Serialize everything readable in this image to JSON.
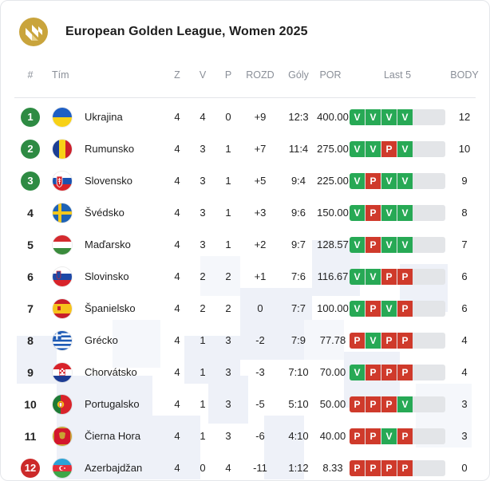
{
  "header": {
    "title": "European Golden League, Women 2025",
    "logo_icon": "league-logo-icon"
  },
  "columns": {
    "rank": "#",
    "team": "Tím",
    "played": "Z",
    "won": "V",
    "lost": "P",
    "diff": "ROZD",
    "score": "Góly",
    "por": "POR",
    "last5": "Last 5",
    "points": "BODY"
  },
  "colors": {
    "win": "#27a955",
    "loss": "#cf3a2b",
    "rank_top": "#2e8b43",
    "rank_bottom": "#cc2a2a",
    "bar_bg": "#e3e5e8"
  },
  "rows": [
    {
      "rank": "1",
      "rank_style": "top",
      "flag": "ukraine",
      "team": "Ukrajina",
      "z": "4",
      "v": "4",
      "p": "0",
      "rozd": "+9",
      "goly": "12:3",
      "por": "400.00",
      "last5": [
        "V",
        "V",
        "V",
        "V"
      ],
      "body": "12"
    },
    {
      "rank": "2",
      "rank_style": "top",
      "flag": "romania",
      "team": "Rumunsko",
      "z": "4",
      "v": "3",
      "p": "1",
      "rozd": "+7",
      "goly": "11:4",
      "por": "275.00",
      "last5": [
        "V",
        "V",
        "P",
        "V"
      ],
      "body": "10"
    },
    {
      "rank": "3",
      "rank_style": "top",
      "flag": "slovakia",
      "team": "Slovensko",
      "z": "4",
      "v": "3",
      "p": "1",
      "rozd": "+5",
      "goly": "9:4",
      "por": "225.00",
      "last5": [
        "V",
        "P",
        "V",
        "V"
      ],
      "body": "9"
    },
    {
      "rank": "4",
      "rank_style": "plain",
      "flag": "sweden",
      "team": "Švédsko",
      "z": "4",
      "v": "3",
      "p": "1",
      "rozd": "+3",
      "goly": "9:6",
      "por": "150.00",
      "last5": [
        "V",
        "P",
        "V",
        "V"
      ],
      "body": "8"
    },
    {
      "rank": "5",
      "rank_style": "plain",
      "flag": "hungary",
      "team": "Maďarsko",
      "z": "4",
      "v": "3",
      "p": "1",
      "rozd": "+2",
      "goly": "9:7",
      "por": "128.57",
      "last5": [
        "V",
        "P",
        "V",
        "V"
      ],
      "body": "7"
    },
    {
      "rank": "6",
      "rank_style": "plain",
      "flag": "slovenia",
      "team": "Slovinsko",
      "z": "4",
      "v": "2",
      "p": "2",
      "rozd": "+1",
      "goly": "7:6",
      "por": "116.67",
      "last5": [
        "V",
        "V",
        "P",
        "P"
      ],
      "body": "6"
    },
    {
      "rank": "7",
      "rank_style": "plain",
      "flag": "spain",
      "team": "Španielsko",
      "z": "4",
      "v": "2",
      "p": "2",
      "rozd": "0",
      "goly": "7:7",
      "por": "100.00",
      "last5": [
        "V",
        "P",
        "V",
        "P"
      ],
      "body": "6"
    },
    {
      "rank": "8",
      "rank_style": "plain",
      "flag": "greece",
      "team": "Grécko",
      "z": "4",
      "v": "1",
      "p": "3",
      "rozd": "-2",
      "goly": "7:9",
      "por": "77.78",
      "last5": [
        "P",
        "V",
        "P",
        "P"
      ],
      "body": "4"
    },
    {
      "rank": "9",
      "rank_style": "plain",
      "flag": "croatia",
      "team": "Chorvátsko",
      "z": "4",
      "v": "1",
      "p": "3",
      "rozd": "-3",
      "goly": "7:10",
      "por": "70.00",
      "last5": [
        "V",
        "P",
        "P",
        "P"
      ],
      "body": "4"
    },
    {
      "rank": "10",
      "rank_style": "plain",
      "flag": "portugal",
      "team": "Portugalsko",
      "z": "4",
      "v": "1",
      "p": "3",
      "rozd": "-5",
      "goly": "5:10",
      "por": "50.00",
      "last5": [
        "P",
        "P",
        "P",
        "V"
      ],
      "body": "3"
    },
    {
      "rank": "11",
      "rank_style": "plain",
      "flag": "montenegro",
      "team": "Čierna Hora",
      "z": "4",
      "v": "1",
      "p": "3",
      "rozd": "-6",
      "goly": "4:10",
      "por": "40.00",
      "last5": [
        "P",
        "P",
        "V",
        "P"
      ],
      "body": "3"
    },
    {
      "rank": "12",
      "rank_style": "bottom",
      "flag": "azerbaijan",
      "team": "Azerbajdžan",
      "z": "4",
      "v": "0",
      "p": "4",
      "rozd": "-11",
      "goly": "1:12",
      "por": "8.33",
      "last5": [
        "P",
        "P",
        "P",
        "P"
      ],
      "body": "0"
    }
  ]
}
